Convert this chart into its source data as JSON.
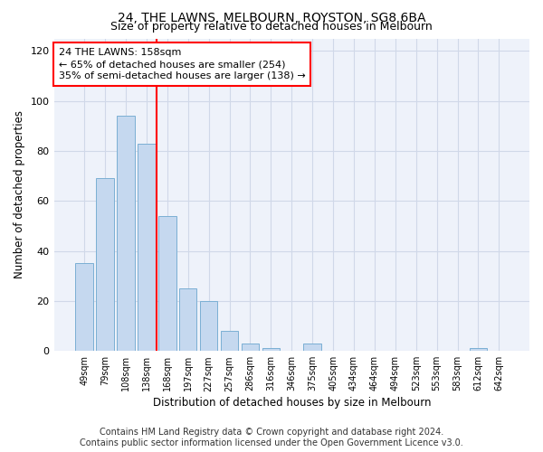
{
  "title": "24, THE LAWNS, MELBOURN, ROYSTON, SG8 6BA",
  "subtitle": "Size of property relative to detached houses in Melbourn",
  "xlabel": "Distribution of detached houses by size in Melbourn",
  "ylabel": "Number of detached properties",
  "bar_labels": [
    "49sqm",
    "79sqm",
    "108sqm",
    "138sqm",
    "168sqm",
    "197sqm",
    "227sqm",
    "257sqm",
    "286sqm",
    "316sqm",
    "346sqm",
    "375sqm",
    "405sqm",
    "434sqm",
    "464sqm",
    "494sqm",
    "523sqm",
    "553sqm",
    "583sqm",
    "612sqm",
    "642sqm"
  ],
  "bar_values": [
    35,
    69,
    94,
    83,
    54,
    25,
    20,
    8,
    3,
    1,
    0,
    3,
    0,
    0,
    0,
    0,
    0,
    0,
    0,
    1,
    0
  ],
  "bar_color": "#c5d8ef",
  "bar_edgecolor": "#7bafd4",
  "annotation_text": "24 THE LAWNS: 158sqm\n← 65% of detached houses are smaller (254)\n35% of semi-detached houses are larger (138) →",
  "annotation_box_edgecolor": "red",
  "redline_color": "red",
  "ylim": [
    0,
    125
  ],
  "yticks": [
    0,
    20,
    40,
    60,
    80,
    100,
    120
  ],
  "grid_color": "#d0d8e8",
  "background_color": "#eef2fa",
  "footer_line1": "Contains HM Land Registry data © Crown copyright and database right 2024.",
  "footer_line2": "Contains public sector information licensed under the Open Government Licence v3.0.",
  "title_fontsize": 10,
  "subtitle_fontsize": 9,
  "annotation_fontsize": 8,
  "axis_label_fontsize": 8.5,
  "tick_fontsize": 7,
  "footer_fontsize": 7
}
